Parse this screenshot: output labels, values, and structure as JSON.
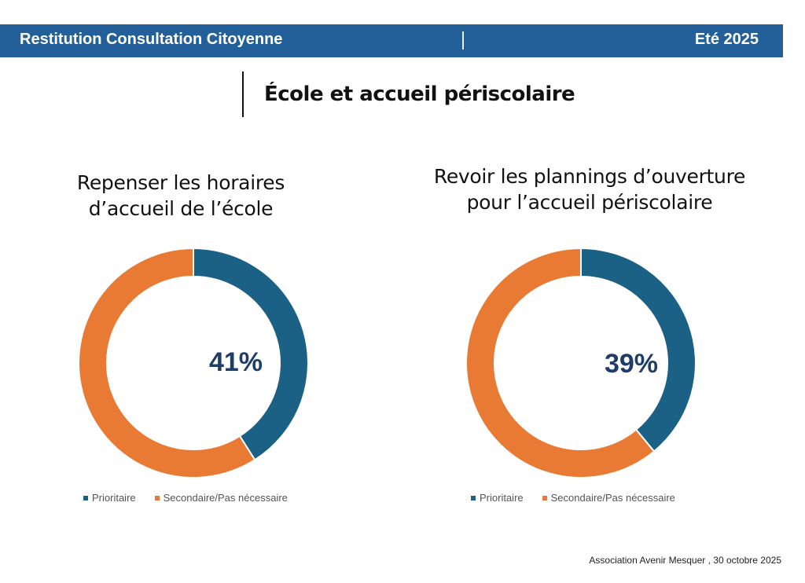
{
  "header": {
    "title": "Restitution Consultation Citoyenne",
    "date": "Eté 2025",
    "color": "#23609a"
  },
  "section": {
    "title": "École et accueil périscolaire"
  },
  "chart_data": [
    {
      "type": "pie",
      "variant": "donut",
      "title": "Repenser les horaires d’accueil de l’école",
      "center_label": "41%",
      "categories": [
        "Prioritaire",
        "Secondaire/Pas nécessaire"
      ],
      "values": [
        41,
        59
      ],
      "colors": [
        "#1b6186",
        "#e87a34"
      ],
      "legend": {
        "placement": "bottom",
        "entries": [
          "Prioritaire",
          "Secondaire/Pas nécessaire"
        ]
      }
    },
    {
      "type": "pie",
      "variant": "donut",
      "title": "Revoir les plannings d’ouverture pour l’accueil périscolaire",
      "center_label": "39%",
      "categories": [
        "Prioritaire",
        "Secondaire/Pas nécessaire"
      ],
      "values": [
        39,
        61
      ],
      "colors": [
        "#1b6186",
        "#e87a34"
      ],
      "legend": {
        "placement": "bottom",
        "entries": [
          "Prioritaire",
          "Secondaire/Pas nécessaire"
        ]
      }
    }
  ],
  "footer": {
    "text": "Association Avenir Mesquer , 30 octobre 2025"
  }
}
